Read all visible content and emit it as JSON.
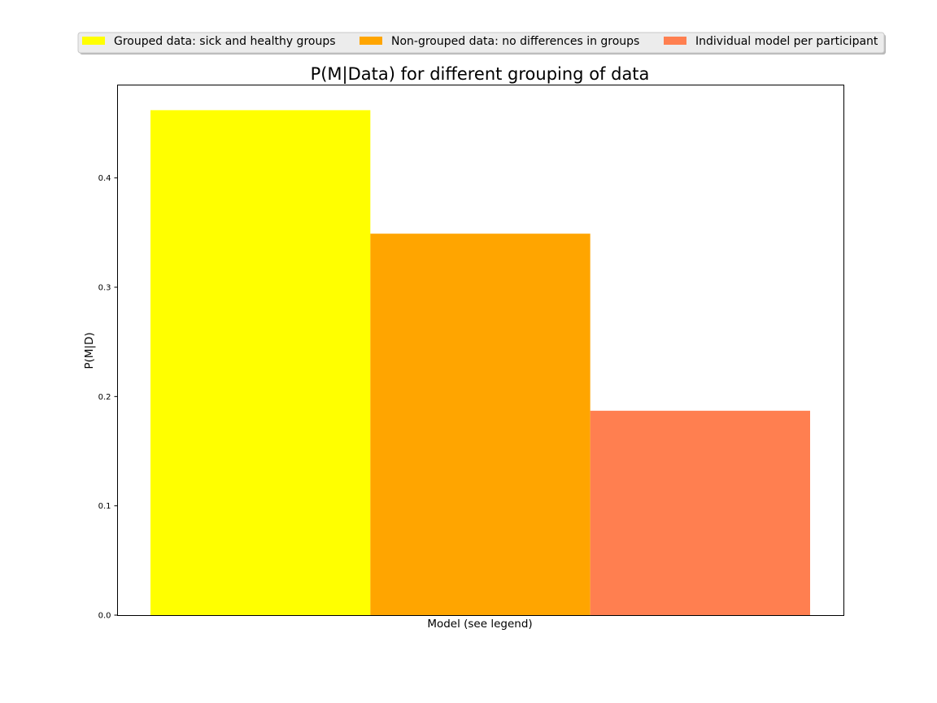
{
  "chart_data": {
    "type": "bar",
    "title": "P(M|Data) for different grouping of data",
    "xlabel": "Model (see legend)",
    "ylabel": "P(M|D)",
    "ylim": [
      0,
      0.485
    ],
    "yticks": [
      "0.0",
      "0.1",
      "0.2",
      "0.3",
      "0.4"
    ],
    "grid": false,
    "legend_position": "top-center",
    "series": [
      {
        "name": "Grouped data: sick and healthy groups",
        "value": 0.462,
        "color": "#ffff00"
      },
      {
        "name": "Non-grouped data: no differences in groups",
        "value": 0.349,
        "color": "#ffa500"
      },
      {
        "name": "Individual model per participant",
        "value": 0.187,
        "color": "#ff7f50"
      }
    ]
  }
}
